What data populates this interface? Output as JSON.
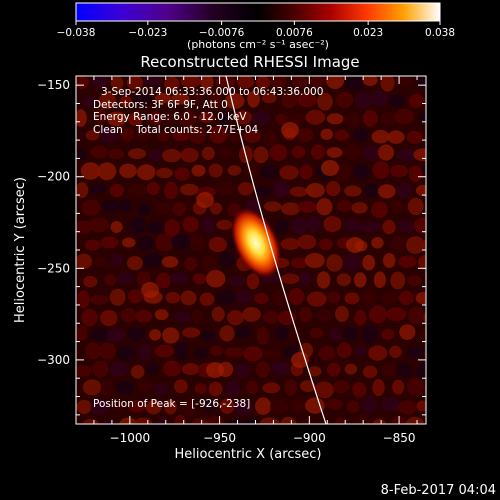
{
  "colorbar": {
    "tick_labels": [
      "−0.038",
      "−0.023",
      "−0.0076",
      "0.0076",
      "0.023",
      "0.038"
    ],
    "units_label": "(photons cm⁻² s⁻¹ asec⁻²)",
    "min": -0.038,
    "max": 0.038,
    "colormap": [
      "#0000ff",
      "#6a00b0",
      "#2a0020",
      "#000000",
      "#400000",
      "#a00000",
      "#ff3000",
      "#ff9a00",
      "#ffff80",
      "#ffffff"
    ]
  },
  "image": {
    "title": "Reconstructed RHESSI Image",
    "info_lines": [
      "3-Sep-2014 06:33:36.000 to 06:43:36.000",
      "Detectors: 3F 6F 9F, Att 0",
      "Energy Range: 6.0 - 12.0 keV",
      "Clean    Total counts: 2.77E+04"
    ],
    "peak_label": "Position of Peak = [-926,-238]",
    "x_axis_label": "Heliocentric X (arcsec)",
    "y_axis_label": "Heliocentric Y (arcsec)",
    "x_ticks": [
      "−1000",
      "−950",
      "−900",
      "−850"
    ],
    "y_ticks": [
      "−150",
      "−200",
      "−250",
      "−300"
    ],
    "x_range": [
      -1030,
      -835
    ],
    "y_range": [
      -335,
      -145
    ],
    "peak": {
      "x": -926,
      "y": -238
    }
  },
  "footer": {
    "timestamp": "8-Feb-2017 04:04"
  }
}
